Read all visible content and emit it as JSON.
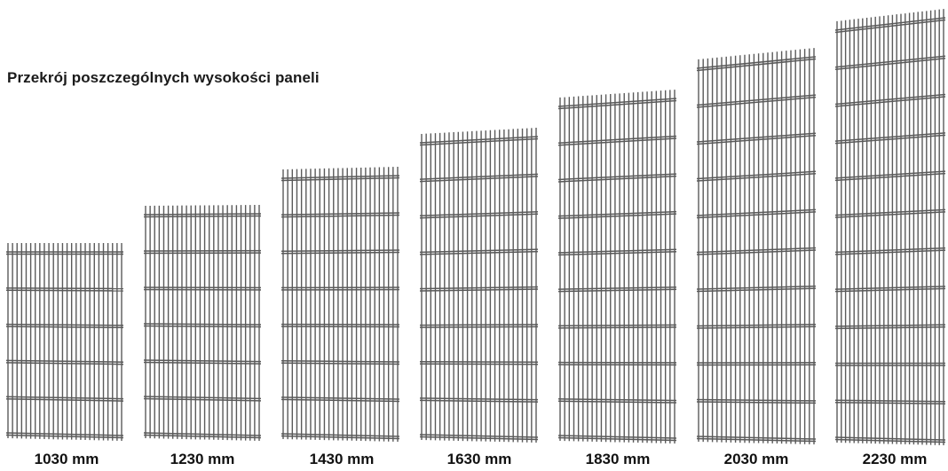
{
  "title": "Przekrój poszczególnych wysokości paneli",
  "panels": [
    {
      "height_label": "1030 mm",
      "height_mm": 1030
    },
    {
      "height_label": "1230 mm",
      "height_mm": 1230
    },
    {
      "height_label": "1430 mm",
      "height_mm": 1430
    },
    {
      "height_label": "1630 mm",
      "height_mm": 1630
    },
    {
      "height_label": "1830 mm",
      "height_mm": 1830
    },
    {
      "height_label": "2030 mm",
      "height_mm": 2030
    },
    {
      "height_label": "2230 mm",
      "height_mm": 2230
    }
  ],
  "colors": {
    "wire": "#5a5a5a",
    "text": "#111111"
  }
}
